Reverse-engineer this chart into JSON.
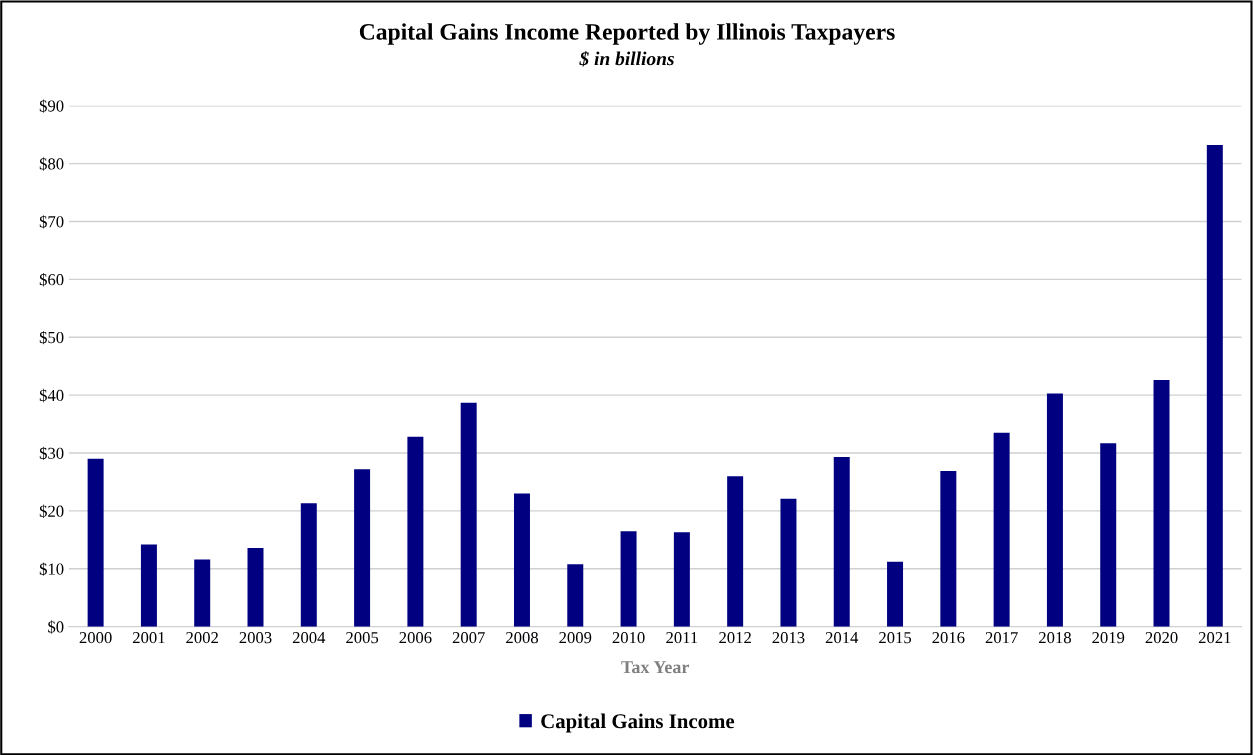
{
  "chart_data": {
    "type": "bar",
    "title": "Capital Gains Income Reported by Illinois Taxpayers",
    "subtitle": "$ in billions",
    "xlabel": "Tax Year",
    "categories": [
      "2000",
      "2001",
      "2002",
      "2003",
      "2004",
      "2005",
      "2006",
      "2007",
      "2008",
      "2009",
      "2010",
      "2011",
      "2012",
      "2013",
      "2014",
      "2015",
      "2016",
      "2017",
      "2018",
      "2019",
      "2020",
      "2021"
    ],
    "series": [
      {
        "name": "Capital Gains Income",
        "color": "#000080",
        "values": [
          29.0,
          14.2,
          11.6,
          13.6,
          21.3,
          27.2,
          32.8,
          38.7,
          23.0,
          10.8,
          16.5,
          16.3,
          26.0,
          22.1,
          29.3,
          11.2,
          26.9,
          33.5,
          40.3,
          31.7,
          42.6,
          83.2
        ]
      }
    ],
    "ylim": [
      0,
      90
    ],
    "yticks": [
      {
        "value": 0,
        "label": "$0"
      },
      {
        "value": 10,
        "label": "$10"
      },
      {
        "value": 20,
        "label": "$20"
      },
      {
        "value": 30,
        "label": "$30"
      },
      {
        "value": 40,
        "label": "$40"
      },
      {
        "value": 50,
        "label": "$50"
      },
      {
        "value": 60,
        "label": "$60"
      },
      {
        "value": 70,
        "label": "$70"
      },
      {
        "value": 80,
        "label": "$80"
      },
      {
        "value": 90,
        "label": "$90"
      }
    ],
    "grid": "y",
    "legend": "bottom"
  }
}
